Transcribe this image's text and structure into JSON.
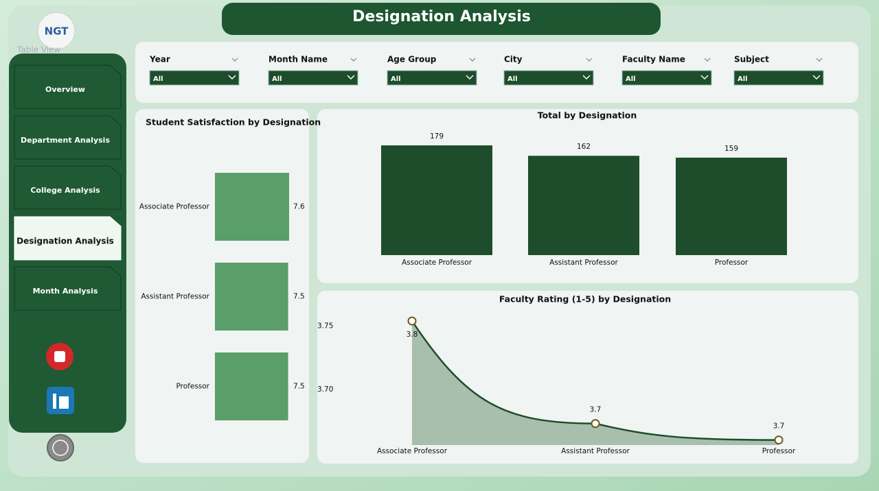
{
  "header": {
    "title": "Designation Analysis"
  },
  "logo": {
    "text": "NGT",
    "overlay_text": "Table View"
  },
  "nav": {
    "items": [
      "Overview",
      "Department Analysis",
      "College Analysis",
      "Designation Analysis",
      "Month Analysis"
    ],
    "active": 3
  },
  "filters": [
    {
      "label": "Year",
      "value": "All"
    },
    {
      "label": "Month Name",
      "value": "All"
    },
    {
      "label": "Age Group",
      "value": "All"
    },
    {
      "label": "City",
      "value": "All"
    },
    {
      "label": "Faculty Name",
      "value": "All"
    },
    {
      "label": "Subject",
      "value": "All"
    }
  ],
  "chart_data": [
    {
      "type": "bar",
      "horizontal": true,
      "title": "Student Satisfaction by Designation",
      "categories": [
        "Associate Professor",
        "Assistant Professor",
        "Professor"
      ],
      "values": [
        7.6,
        7.5,
        7.5
      ],
      "color": "#5a9e6a",
      "xlim": [
        0,
        7.6
      ]
    },
    {
      "type": "bar",
      "title": "Total by Designation",
      "categories": [
        "Associate Professor",
        "Assistant Professor",
        "Professor"
      ],
      "values": [
        179,
        162,
        159
      ],
      "color": "#1e4d2b",
      "ylim": [
        0,
        179
      ]
    },
    {
      "type": "area",
      "title": "Faculty Rating (1-5) by Designation",
      "categories": [
        "Associate Professor",
        "Assistant Professor",
        "Professor"
      ],
      "values": [
        3.754,
        3.673,
        3.66
      ],
      "value_labels": [
        "3.8",
        "3.7",
        "3.7"
      ],
      "color": "#1e4d2b",
      "fill": "#a9bfae",
      "ylim": [
        3.656,
        3.76
      ],
      "yticks": [
        3.75,
        {
          "value": 3.7,
          "label": "3.70"
        }
      ]
    }
  ]
}
